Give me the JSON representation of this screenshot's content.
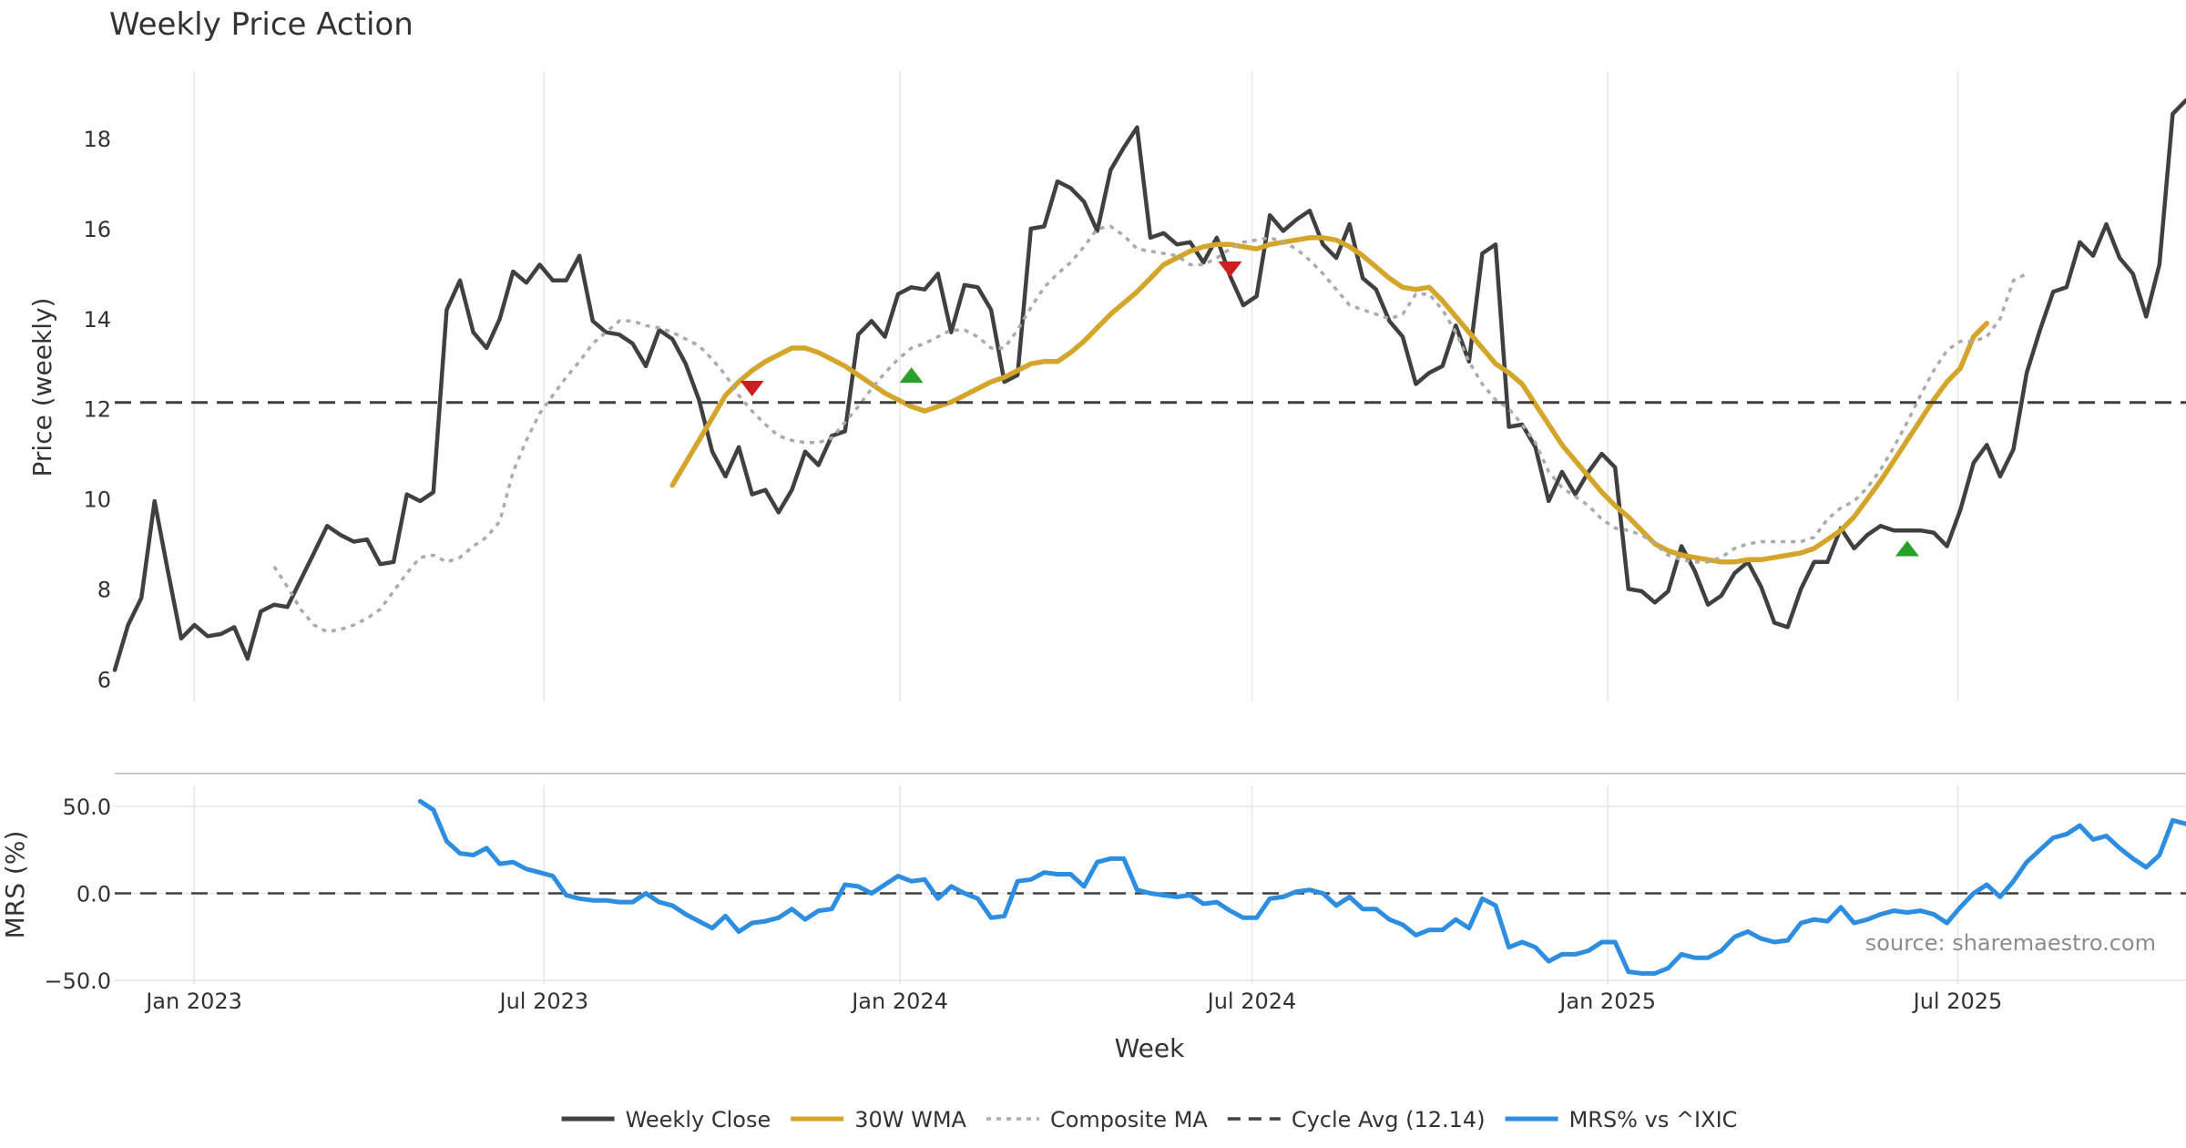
{
  "chart_data": {
    "type": "line",
    "title": "Weekly Price Action",
    "xlabel": "Week",
    "x_start": "2022-11-21",
    "x_end": "2025-10-27",
    "x_ticks": [
      "Jan 2023",
      "Jul 2023",
      "Jan 2024",
      "Jul 2024",
      "Jan 2025",
      "Jul 2025"
    ],
    "x_tick_dates": [
      "2023-01-01",
      "2023-07-01",
      "2024-01-01",
      "2024-07-01",
      "2025-01-01",
      "2025-07-01"
    ],
    "grid": true,
    "legend_position": "bottom-center",
    "source_note": "source: sharemaestro.com",
    "price_panel": {
      "ylabel": "Price (weekly)",
      "ylim": [
        5.5,
        19.5
      ],
      "y_ticks": [
        "6",
        "8",
        "10",
        "12",
        "14",
        "16",
        "18"
      ],
      "series": [
        {
          "name": "Weekly Close",
          "color": "#404040",
          "style": "solid",
          "values": [
            6.2,
            7.2,
            7.8,
            9.95,
            8.4,
            6.9,
            7.2,
            6.95,
            7.0,
            7.15,
            6.45,
            7.5,
            7.65,
            7.6,
            8.2,
            8.8,
            9.4,
            9.2,
            9.05,
            9.1,
            8.55,
            8.6,
            10.1,
            9.95,
            10.15,
            14.2,
            14.85,
            13.7,
            13.35,
            14.0,
            15.05,
            14.8,
            15.2,
            14.85,
            14.85,
            15.4,
            13.95,
            13.7,
            13.65,
            13.45,
            12.95,
            13.75,
            13.55,
            13.0,
            12.2,
            11.05,
            10.5,
            11.15,
            10.1,
            10.2,
            9.7,
            10.2,
            11.05,
            10.75,
            11.4,
            11.5,
            13.65,
            13.95,
            13.6,
            14.55,
            14.7,
            14.65,
            15.0,
            13.7,
            14.75,
            14.7,
            14.2,
            12.6,
            12.75,
            16.0,
            16.05,
            17.05,
            16.9,
            16.6,
            15.95,
            17.3,
            17.8,
            18.25,
            15.8,
            15.9,
            15.65,
            15.7,
            15.25,
            15.8,
            14.95,
            14.3,
            14.5,
            16.3,
            15.95,
            16.2,
            16.4,
            15.65,
            15.35,
            16.1,
            14.9,
            14.65,
            13.95,
            13.6,
            12.55,
            12.8,
            12.95,
            13.85,
            13.05,
            15.45,
            15.65,
            11.6,
            11.65,
            11.15,
            9.95,
            10.6,
            10.1,
            10.6,
            11.0,
            10.7,
            8.0,
            7.95,
            7.7,
            7.95,
            8.95,
            8.4,
            7.65,
            7.85,
            8.35,
            8.6,
            8.05,
            7.25,
            7.15,
            8.0,
            8.6,
            8.6,
            9.35,
            8.9,
            9.2,
            9.4,
            9.3,
            9.3,
            9.3,
            9.25,
            8.95,
            9.75,
            10.8,
            11.2,
            10.5,
            11.1,
            12.8,
            13.75,
            14.6,
            14.7,
            15.7,
            15.4,
            16.1,
            15.35,
            15.0,
            14.05,
            15.2,
            18.55,
            18.85
          ]
        },
        {
          "name": "30W WMA",
          "color": "#d4a52b",
          "style": "solid",
          "values": [
            null,
            null,
            null,
            null,
            null,
            null,
            null,
            null,
            null,
            null,
            null,
            null,
            null,
            null,
            null,
            null,
            null,
            null,
            null,
            null,
            null,
            null,
            null,
            null,
            null,
            null,
            null,
            null,
            null,
            null,
            null,
            null,
            null,
            null,
            null,
            null,
            null,
            null,
            null,
            null,
            null,
            null,
            10.3,
            10.8,
            11.3,
            11.8,
            12.3,
            12.6,
            12.85,
            13.05,
            13.2,
            13.35,
            13.35,
            13.25,
            13.1,
            12.95,
            12.75,
            12.55,
            12.35,
            12.2,
            12.05,
            11.95,
            12.05,
            12.15,
            12.3,
            12.45,
            12.6,
            12.7,
            12.85,
            13.0,
            13.05,
            13.05,
            13.25,
            13.5,
            13.8,
            14.1,
            14.35,
            14.6,
            14.9,
            15.2,
            15.35,
            15.5,
            15.6,
            15.65,
            15.65,
            15.6,
            15.55,
            15.65,
            15.7,
            15.75,
            15.8,
            15.8,
            15.75,
            15.6,
            15.4,
            15.15,
            14.9,
            14.7,
            14.65,
            14.7,
            14.4,
            14.05,
            13.7,
            13.35,
            13.0,
            12.8,
            12.55,
            12.1,
            11.65,
            11.2,
            10.85,
            10.5,
            10.15,
            9.85,
            9.6,
            9.3,
            9.0,
            8.85,
            8.75,
            8.7,
            8.65,
            8.6,
            8.6,
            8.65,
            8.65,
            8.7,
            8.75,
            8.8,
            8.9,
            9.1,
            9.3,
            9.6,
            10.0,
            10.4,
            10.85,
            11.3,
            11.75,
            12.2,
            12.6,
            12.9,
            13.6,
            13.9
          ]
        },
        {
          "name": "Composite MA",
          "color": "#ababab",
          "style": "dotted",
          "values": [
            null,
            null,
            null,
            null,
            null,
            null,
            null,
            null,
            null,
            null,
            null,
            null,
            8.5,
            8.05,
            7.55,
            7.2,
            7.05,
            7.1,
            7.2,
            7.35,
            7.55,
            7.95,
            8.35,
            8.7,
            8.75,
            8.6,
            8.7,
            8.95,
            9.15,
            9.5,
            10.6,
            11.3,
            11.9,
            12.3,
            12.7,
            13.05,
            13.45,
            13.7,
            13.95,
            13.95,
            13.85,
            13.8,
            13.7,
            13.55,
            13.4,
            13.1,
            12.75,
            12.3,
            11.95,
            11.65,
            11.4,
            11.3,
            11.25,
            11.25,
            11.35,
            11.7,
            12.05,
            12.45,
            12.8,
            13.1,
            13.35,
            13.45,
            13.6,
            13.75,
            13.75,
            13.6,
            13.35,
            13.35,
            13.75,
            14.25,
            14.7,
            15.0,
            15.25,
            15.6,
            16.0,
            16.05,
            15.85,
            15.55,
            15.5,
            15.45,
            15.4,
            15.2,
            15.2,
            15.35,
            15.55,
            15.7,
            15.75,
            15.8,
            15.7,
            15.55,
            15.3,
            15.0,
            14.65,
            14.3,
            14.2,
            14.1,
            14.0,
            14.1,
            14.55,
            14.55,
            14.2,
            13.7,
            13.05,
            12.55,
            12.2,
            12.0,
            11.65,
            11.25,
            10.6,
            10.25,
            10.05,
            9.85,
            9.55,
            9.35,
            9.3,
            9.2,
            9.0,
            8.75,
            8.65,
            8.6,
            8.6,
            8.7,
            8.9,
            9.0,
            9.05,
            9.05,
            9.05,
            9.05,
            9.15,
            9.55,
            9.8,
            9.95,
            10.25,
            10.65,
            11.15,
            11.7,
            12.3,
            12.85,
            13.3,
            13.5,
            13.5,
            13.6,
            14.0,
            14.85,
            15.0
          ]
        },
        {
          "name": "Cycle Avg (12.14)",
          "color": "#404040",
          "style": "dashed",
          "constant": 12.14
        }
      ],
      "markers": [
        {
          "kind": "sell",
          "shape": "down-triangle",
          "color": "#cc1f1f",
          "week_index": 48,
          "value": 12.45
        },
        {
          "kind": "buy",
          "shape": "up-triangle",
          "color": "#2aa02a",
          "week_index": 60,
          "value": 12.75
        },
        {
          "kind": "sell",
          "shape": "down-triangle",
          "color": "#cc1f1f",
          "week_index": 84,
          "value": 15.1
        },
        {
          "kind": "buy",
          "shape": "up-triangle",
          "color": "#2aa02a",
          "week_index": 135,
          "value": 8.9
        }
      ]
    },
    "mrs_panel": {
      "ylabel": "MRS (%)",
      "ylim": [
        -50,
        60
      ],
      "y_ticks": [
        "50.0",
        "0.0",
        "−50.0"
      ],
      "zero_line": {
        "value": 0,
        "style": "dashed",
        "color": "#404040"
      },
      "series": [
        {
          "name": "MRS% vs ^IXIC",
          "color": "#2d8de0",
          "style": "solid",
          "values": [
            null,
            null,
            null,
            null,
            null,
            null,
            null,
            null,
            null,
            null,
            null,
            null,
            null,
            null,
            null,
            null,
            null,
            null,
            null,
            null,
            null,
            null,
            null,
            53,
            48,
            30,
            23,
            22,
            26,
            17,
            18,
            14,
            12,
            10,
            -1,
            -3,
            -4,
            -4,
            -5,
            -5,
            0,
            -5,
            -7,
            -12,
            -16,
            -20,
            -13,
            -22,
            -17,
            -16,
            -14,
            -9,
            -15,
            -10,
            -9,
            5,
            4,
            0,
            5,
            10,
            7,
            8,
            -3,
            4,
            0,
            -3,
            -14,
            -13,
            7,
            8,
            12,
            11,
            11,
            4,
            18,
            20,
            20,
            2,
            0,
            -1,
            -2,
            -1,
            -6,
            -5,
            -10,
            -14,
            -14,
            -3,
            -2,
            1,
            2,
            0,
            -7,
            -2,
            -9,
            -9,
            -15,
            -18,
            -24,
            -21,
            -21,
            -15,
            -20,
            -3,
            -7,
            -31,
            -28,
            -31,
            -39,
            -35,
            -35,
            -33,
            -28,
            -28,
            -45,
            -46,
            -46,
            -43,
            -35,
            -37,
            -37,
            -33,
            -25,
            -22,
            -26,
            -28,
            -27,
            -17,
            -15,
            -16,
            -8,
            -17,
            -15,
            -12,
            -10,
            -11,
            -10,
            -12,
            -17,
            -8,
            0,
            5,
            -2,
            7,
            18,
            25,
            32,
            34,
            39,
            31,
            33,
            26,
            20,
            15,
            22,
            42,
            40
          ]
        }
      ]
    },
    "legend": [
      {
        "label": "Weekly Close",
        "color": "#404040",
        "style": "solid"
      },
      {
        "label": "30W WMA",
        "color": "#d4a52b",
        "style": "solid"
      },
      {
        "label": "Composite MA",
        "color": "#ababab",
        "style": "dotted"
      },
      {
        "label": "Cycle Avg (12.14)",
        "color": "#404040",
        "style": "dashed"
      },
      {
        "label": "MRS% vs ^IXIC",
        "color": "#2d8de0",
        "style": "solid"
      }
    ]
  }
}
